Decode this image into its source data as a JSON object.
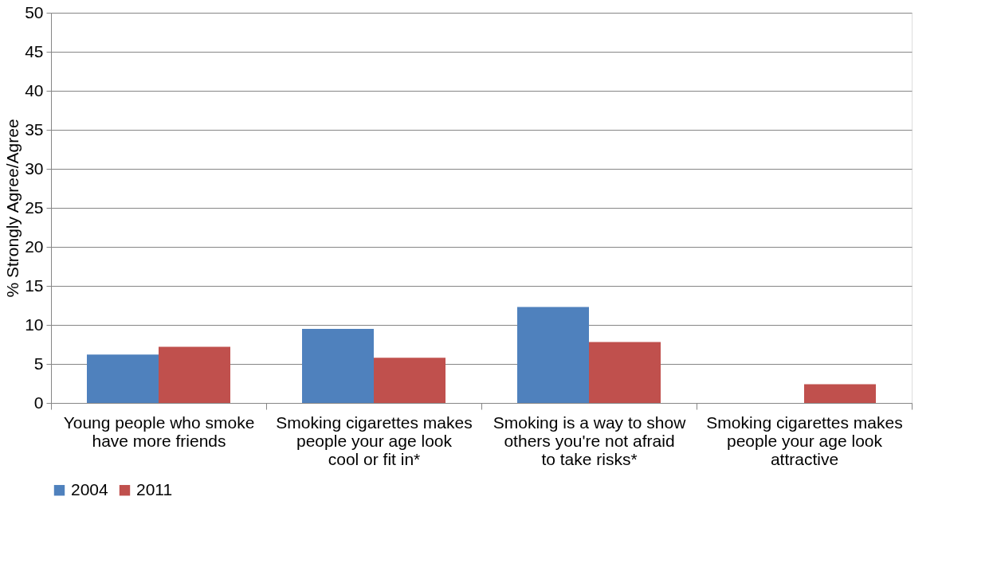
{
  "chart_data": {
    "type": "bar",
    "ylabel": "% Strongly Agree/Agree",
    "categories": [
      "Young people who smoke have more friends",
      "Smoking cigarettes makes people your age look cool or fit in*",
      "Smoking is a way to show others you're not afraid to take risks*",
      "Smoking cigarettes makes people your age look attractive"
    ],
    "series": [
      {
        "name": "2004",
        "color": "#4f81bd",
        "values": [
          6.2,
          9.5,
          12.3,
          null
        ]
      },
      {
        "name": "2011",
        "color": "#c0504d",
        "values": [
          7.2,
          5.8,
          7.8,
          2.4
        ]
      }
    ],
    "ylim": [
      0,
      50
    ],
    "yticks": [
      0,
      5,
      10,
      15,
      20,
      25,
      30,
      35,
      40,
      45,
      50
    ],
    "grid": "y",
    "legend": "bottom"
  }
}
